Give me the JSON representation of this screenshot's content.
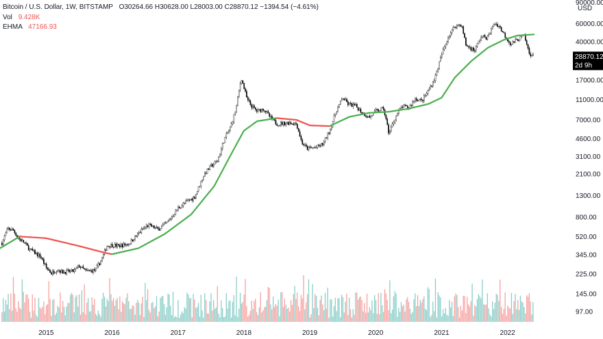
{
  "chart_data": {
    "type": "candlestick",
    "header": "Bitcoin / U.S. Dollar, 1W, BITSTAMP",
    "ohlc_text": "O30264.66  H30628.00  L28003.00  C28870.12  −1394.54 (−4.61%)",
    "volume_label": "Vol",
    "volume_value": "9.428K",
    "ehma_label": "EHMA",
    "ehma_value": "47166.93",
    "currency_label": "USD",
    "top_tick_partial": "90000.00",
    "last_price": "28870.12",
    "last_price_countdown": "2d 9h",
    "y_scale": "log",
    "ylim": [
      75,
      90000
    ],
    "xlim": [
      2014.3,
      2022.7
    ],
    "y_ticks": [
      "60000.00",
      "40000.00",
      "17000.00",
      "11000.00",
      "7000.00",
      "4600.00",
      "3100.00",
      "2100.00",
      "1300.00",
      "800.00",
      "520.00",
      "345.00",
      "225.00",
      "145.00",
      "97.00"
    ],
    "x_ticks": [
      "2015",
      "2016",
      "2017",
      "2018",
      "2019",
      "2020",
      "2021",
      "2022"
    ],
    "price_path": [
      [
        2014.33,
        450
      ],
      [
        2014.42,
        620
      ],
      [
        2014.5,
        600
      ],
      [
        2014.58,
        500
      ],
      [
        2014.67,
        450
      ],
      [
        2014.75,
        390
      ],
      [
        2014.83,
        360
      ],
      [
        2014.92,
        330
      ],
      [
        2015.0,
        260
      ],
      [
        2015.08,
        230
      ],
      [
        2015.17,
        250
      ],
      [
        2015.25,
        235
      ],
      [
        2015.42,
        240
      ],
      [
        2015.5,
        270
      ],
      [
        2015.6,
        240
      ],
      [
        2015.75,
        245
      ],
      [
        2015.85,
        320
      ],
      [
        2015.92,
        420
      ],
      [
        2016.0,
        430
      ],
      [
        2016.1,
        420
      ],
      [
        2016.25,
        440
      ],
      [
        2016.45,
        600
      ],
      [
        2016.55,
        670
      ],
      [
        2016.7,
        610
      ],
      [
        2016.85,
        720
      ],
      [
        2017.0,
        980
      ],
      [
        2017.15,
        1150
      ],
      [
        2017.25,
        1250
      ],
      [
        2017.4,
        2100
      ],
      [
        2017.5,
        2500
      ],
      [
        2017.6,
        2800
      ],
      [
        2017.7,
        4500
      ],
      [
        2017.8,
        6000
      ],
      [
        2017.88,
        9000
      ],
      [
        2017.96,
        18000
      ],
      [
        2018.05,
        11000
      ],
      [
        2018.12,
        9500
      ],
      [
        2018.2,
        8500
      ],
      [
        2018.3,
        9000
      ],
      [
        2018.4,
        7400
      ],
      [
        2018.5,
        6400
      ],
      [
        2018.6,
        6500
      ],
      [
        2018.7,
        6600
      ],
      [
        2018.8,
        6400
      ],
      [
        2018.88,
        4200
      ],
      [
        2018.96,
        3700
      ],
      [
        2019.1,
        3800
      ],
      [
        2019.2,
        4100
      ],
      [
        2019.3,
        5500
      ],
      [
        2019.4,
        8500
      ],
      [
        2019.5,
        11500
      ],
      [
        2019.58,
        10000
      ],
      [
        2019.7,
        9500
      ],
      [
        2019.8,
        8200
      ],
      [
        2019.9,
        7400
      ],
      [
        2020.0,
        8500
      ],
      [
        2020.12,
        9000
      ],
      [
        2020.2,
        5200
      ],
      [
        2020.3,
        7500
      ],
      [
        2020.4,
        9500
      ],
      [
        2020.5,
        9200
      ],
      [
        2020.6,
        11300
      ],
      [
        2020.7,
        10700
      ],
      [
        2020.8,
        13500
      ],
      [
        2020.9,
        18000
      ],
      [
        2021.0,
        30000
      ],
      [
        2021.1,
        45000
      ],
      [
        2021.2,
        57000
      ],
      [
        2021.3,
        59000
      ],
      [
        2021.37,
        37000
      ],
      [
        2021.5,
        33000
      ],
      [
        2021.6,
        45000
      ],
      [
        2021.7,
        44000
      ],
      [
        2021.8,
        61000
      ],
      [
        2021.87,
        57000
      ],
      [
        2021.95,
        47000
      ],
      [
        2022.05,
        38000
      ],
      [
        2022.15,
        42000
      ],
      [
        2022.25,
        46000
      ],
      [
        2022.33,
        31000
      ],
      [
        2022.4,
        28870
      ]
    ],
    "ehma_path": [
      [
        2014.3,
        400
      ],
      [
        2014.6,
        520
      ],
      [
        2015.0,
        500
      ],
      [
        2015.5,
        420
      ],
      [
        2015.9,
        360
      ],
      [
        2016.0,
        350
      ],
      [
        2016.4,
        400
      ],
      [
        2016.8,
        550
      ],
      [
        2017.2,
        850
      ],
      [
        2017.55,
        1600
      ],
      [
        2017.8,
        3200
      ],
      [
        2018.0,
        5500
      ],
      [
        2018.2,
        6800
      ],
      [
        2018.5,
        7300
      ],
      [
        2018.8,
        7000
      ],
      [
        2019.0,
        6200
      ],
      [
        2019.3,
        6100
      ],
      [
        2019.6,
        7500
      ],
      [
        2019.9,
        8200
      ],
      [
        2020.2,
        8400
      ],
      [
        2020.5,
        9000
      ],
      [
        2020.8,
        10000
      ],
      [
        2021.0,
        11500
      ],
      [
        2021.2,
        18000
      ],
      [
        2021.45,
        26000
      ],
      [
        2021.7,
        35000
      ],
      [
        2021.95,
        42000
      ],
      [
        2022.15,
        46000
      ],
      [
        2022.4,
        47166
      ]
    ],
    "ehma_colors": {
      "rising": "#4caf50",
      "falling": "#ef5350"
    },
    "candle_colors": {
      "up": "#ffffff",
      "down": "#000000",
      "wick": "#000000"
    },
    "volume_colors": {
      "up": "#26a69a",
      "down": "#ef5350"
    }
  }
}
